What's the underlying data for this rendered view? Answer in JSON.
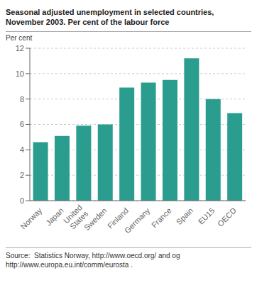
{
  "chart_data": {
    "type": "bar",
    "title": "Seasonal adjusted unemployment in selected countries,\nNovember 2003. Per cent of the labour force",
    "ylabel": "Per cent",
    "categories": [
      "Norway",
      "Japan",
      "United\nStates",
      "Sweden",
      "Finland",
      "Germany",
      "France",
      "Spain",
      "EU15",
      "OECD"
    ],
    "values": [
      4.6,
      5.1,
      5.9,
      6.0,
      8.9,
      9.3,
      9.5,
      11.2,
      8.0,
      6.9
    ],
    "color": "#2a9d8f",
    "ylim": [
      0,
      12
    ],
    "yticks": [
      0,
      2,
      4,
      6,
      8,
      10,
      12
    ],
    "grid": true,
    "annotations": [
      "Source:  Statistics Norway, http://www.oecd.org/ and og\nhttp://www.europa.eu.int/comm/eurosta ."
    ]
  }
}
